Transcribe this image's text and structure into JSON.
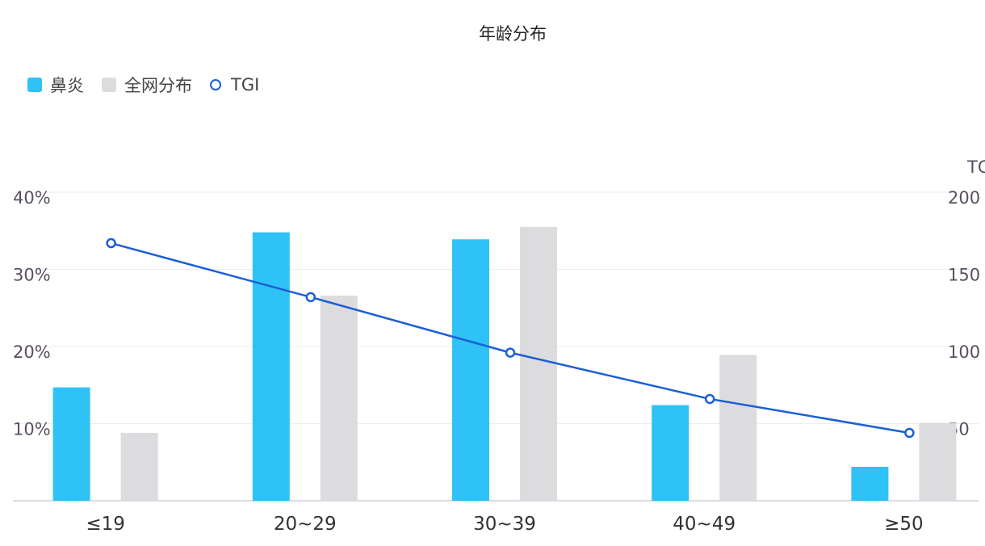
{
  "colors": {
    "primary": "#2ec2f7",
    "secondary": "#dcdcde",
    "line": "#1a5fd6",
    "grid": "#ececf2"
  },
  "chart_data": {
    "type": "bar",
    "title": "年龄分布",
    "categories": [
      "≤19",
      "20~29",
      "30~39",
      "40~49",
      "≥50"
    ],
    "series": [
      {
        "name": "鼻炎",
        "type": "bar",
        "axis": "left",
        "values": [
          14.7,
          34.8,
          33.9,
          12.4,
          4.4
        ]
      },
      {
        "name": "全网分布",
        "type": "bar",
        "axis": "left",
        "values": [
          8.8,
          26.6,
          35.5,
          18.9,
          10.1
        ]
      },
      {
        "name": "TGI",
        "type": "line",
        "axis": "right",
        "values": [
          167,
          132,
          96,
          66,
          44
        ]
      }
    ],
    "y_left": {
      "ylim": [
        0,
        40
      ],
      "ticks": [
        "10%",
        "20%",
        "30%",
        "40%"
      ],
      "tick_values": [
        10,
        20,
        30,
        40
      ]
    },
    "y_right": {
      "label": "TGI",
      "ylim": [
        0,
        200
      ],
      "ticks": [
        "50",
        "100",
        "150",
        "200"
      ],
      "tick_values": [
        50,
        100,
        150,
        200
      ]
    },
    "grid": true,
    "legend": "top-left"
  }
}
